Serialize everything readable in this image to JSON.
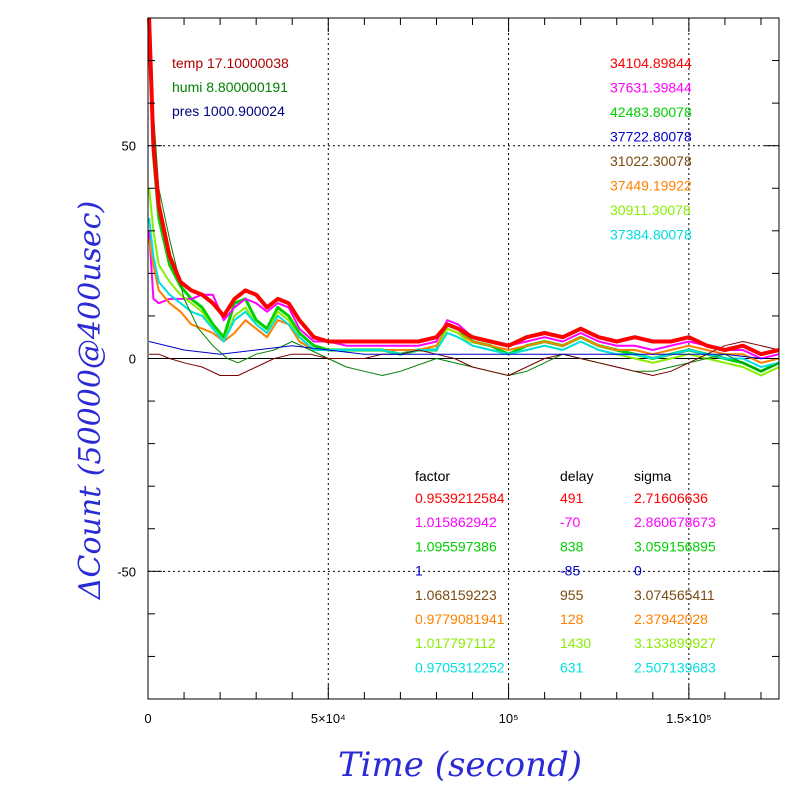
{
  "chart_data": {
    "type": "line",
    "xlabel": "Time (second)",
    "ylabel": "ΔCount (50000@400usec)",
    "xlim": [
      0,
      175000
    ],
    "ylim": [
      -80,
      80
    ],
    "x_ticks": [
      {
        "value": 0,
        "label": "0"
      },
      {
        "value": 50000,
        "label": "5×10⁴"
      },
      {
        "value": 100000,
        "label": "10⁵"
      },
      {
        "value": 150000,
        "label": "1.5×10⁵"
      }
    ],
    "y_ticks": [
      {
        "value": -50,
        "label": "-50"
      },
      {
        "value": 0,
        "label": "0"
      },
      {
        "value": 50,
        "label": "50"
      }
    ],
    "grid": "dotted",
    "env": [
      {
        "text": "temp 17.10000038",
        "color": "#b00000"
      },
      {
        "text": "humi 8.800000191",
        "color": "#008000"
      },
      {
        "text": "pres 1000.900024",
        "color": "#000080"
      }
    ],
    "series_values": [
      {
        "text": "34104.89844",
        "color": "#ff0000"
      },
      {
        "text": "37631.39844",
        "color": "#ff00ff"
      },
      {
        "text": "42483.80078",
        "color": "#00d000"
      },
      {
        "text": "37722.80078",
        "color": "#0000cc"
      },
      {
        "text": "31022.30078",
        "color": "#7a4a10"
      },
      {
        "text": "37449.19922",
        "color": "#ff8000"
      },
      {
        "text": "30911.30078",
        "color": "#88ee00"
      },
      {
        "text": "37384.80078",
        "color": "#00e0e0"
      }
    ],
    "table": {
      "headers": [
        "factor",
        "delay",
        "sigma"
      ],
      "rows": [
        {
          "factor": "0.9539212584",
          "delay": "491",
          "sigma": "2.71606636",
          "color": "#ff0000"
        },
        {
          "factor": "1.015862942",
          "delay": "-70",
          "sigma": "2.860678673",
          "color": "#ff00ff"
        },
        {
          "factor": "1.095597386",
          "delay": "838",
          "sigma": "3.059156895",
          "color": "#00d000"
        },
        {
          "factor": "1",
          "delay": "-85",
          "sigma": "0",
          "color": "#0000cc"
        },
        {
          "factor": "1.068159223",
          "delay": "955",
          "sigma": "3.074565411",
          "color": "#7a4a10"
        },
        {
          "factor": "0.9779081941",
          "delay": "128",
          "sigma": "2.37942028",
          "color": "#ff8000"
        },
        {
          "factor": "1.017797112",
          "delay": "1430",
          "sigma": "3.133899927",
          "color": "#88ee00"
        },
        {
          "factor": "0.9705312252",
          "delay": "631",
          "sigma": "2.507139683",
          "color": "#00e0e0"
        }
      ]
    },
    "series": [
      {
        "color": "#00d000",
        "width": 3,
        "x": [
          300,
          1500,
          3000,
          6000,
          9000,
          12000,
          15000,
          18000,
          21000,
          24000,
          27000,
          30000,
          33000,
          36000,
          39000,
          42000,
          46000,
          50000,
          55000,
          60000,
          65000,
          70000,
          75000,
          80000,
          83000,
          86000,
          90000,
          95000,
          100000,
          105000,
          110000,
          115000,
          120000,
          125000,
          130000,
          135000,
          140000,
          145000,
          150000,
          155000,
          160000,
          165000,
          170000,
          175000
        ],
        "y": [
          78,
          48,
          33,
          22,
          17,
          14,
          12,
          8,
          5,
          13,
          14,
          9,
          7,
          12,
          10,
          6,
          3,
          2,
          2,
          2,
          2,
          1,
          2,
          2,
          8,
          7,
          4,
          3,
          1,
          3,
          4,
          3,
          5,
          3,
          2,
          1,
          0,
          1,
          2,
          1,
          0,
          -1,
          -3,
          -1
        ]
      },
      {
        "color": "#ff00ff",
        "width": 2,
        "x": [
          300,
          1500,
          3000,
          6000,
          9000,
          12000,
          15000,
          18000,
          21000,
          24000,
          27000,
          30000,
          33000,
          36000,
          39000,
          42000,
          46000,
          50000,
          55000,
          60000,
          65000,
          70000,
          75000,
          80000,
          83000,
          86000,
          90000,
          95000,
          100000,
          105000,
          110000,
          115000,
          120000,
          125000,
          130000,
          135000,
          140000,
          145000,
          150000,
          155000,
          160000,
          165000,
          170000,
          175000
        ],
        "y": [
          30,
          14,
          13,
          14,
          14,
          14,
          15,
          15,
          9,
          12,
          14,
          13,
          11,
          13,
          12,
          7,
          4,
          4,
          3,
          3,
          3,
          3,
          3,
          4,
          9,
          8,
          5,
          4,
          3,
          4,
          5,
          4,
          6,
          4,
          3,
          3,
          2,
          3,
          4,
          3,
          2,
          2,
          0,
          1
        ]
      },
      {
        "color": "#ff8000",
        "width": 2,
        "x": [
          300,
          1500,
          3000,
          6000,
          9000,
          12000,
          15000,
          18000,
          21000,
          24000,
          27000,
          30000,
          33000,
          36000,
          39000,
          42000,
          46000,
          50000,
          55000,
          60000,
          65000,
          70000,
          75000,
          80000,
          83000,
          86000,
          90000,
          95000,
          100000,
          105000,
          110000,
          115000,
          120000,
          125000,
          130000,
          135000,
          140000,
          145000,
          150000,
          155000,
          160000,
          165000,
          170000,
          175000
        ],
        "y": [
          28,
          22,
          16,
          13,
          11,
          8,
          7,
          6,
          4,
          6,
          9,
          7,
          5,
          9,
          8,
          4,
          2,
          2,
          2,
          2,
          2,
          2,
          2,
          3,
          7,
          6,
          4,
          3,
          2,
          3,
          4,
          3,
          5,
          3,
          2,
          2,
          1,
          2,
          3,
          2,
          1,
          1,
          -1,
          0
        ]
      },
      {
        "color": "#88ee00",
        "width": 2,
        "x": [
          300,
          1500,
          3000,
          6000,
          9000,
          12000,
          15000,
          18000,
          21000,
          24000,
          27000,
          30000,
          33000,
          36000,
          39000,
          42000,
          46000,
          50000,
          55000,
          60000,
          65000,
          70000,
          75000,
          80000,
          83000,
          86000,
          90000,
          95000,
          100000,
          105000,
          110000,
          115000,
          120000,
          125000,
          130000,
          135000,
          140000,
          145000,
          150000,
          155000,
          160000,
          165000,
          170000,
          175000
        ],
        "y": [
          40,
          30,
          22,
          18,
          15,
          13,
          11,
          7,
          4,
          10,
          12,
          8,
          6,
          11,
          9,
          5,
          2,
          2,
          2,
          2,
          2,
          1,
          2,
          2,
          7,
          6,
          3,
          2,
          1,
          2,
          3,
          2,
          4,
          2,
          1,
          0,
          -1,
          0,
          1,
          0,
          -1,
          -2,
          -4,
          -2
        ]
      },
      {
        "color": "#00e0e0",
        "width": 2,
        "x": [
          300,
          1500,
          3000,
          6000,
          9000,
          12000,
          15000,
          18000,
          21000,
          24000,
          27000,
          30000,
          33000,
          36000,
          39000,
          42000,
          46000,
          50000,
          55000,
          60000,
          65000,
          70000,
          75000,
          80000,
          83000,
          86000,
          90000,
          95000,
          100000,
          105000,
          110000,
          115000,
          120000,
          125000,
          130000,
          135000,
          140000,
          145000,
          150000,
          155000,
          160000,
          165000,
          170000,
          175000
        ],
        "y": [
          33,
          24,
          18,
          15,
          13,
          11,
          10,
          7,
          4,
          9,
          11,
          8,
          6,
          10,
          8,
          5,
          2,
          2,
          2,
          2,
          2,
          1,
          2,
          2,
          6,
          5,
          3,
          2,
          1,
          2,
          3,
          2,
          4,
          2,
          1,
          1,
          0,
          1,
          2,
          1,
          0,
          0,
          -2,
          -1
        ]
      },
      {
        "color": "#008000",
        "width": 1,
        "x": [
          300,
          3000,
          6000,
          10000,
          14000,
          18000,
          22000,
          25000,
          30000,
          35000,
          40000,
          45000,
          50000,
          55000,
          60000,
          65000,
          70000,
          80000,
          90000,
          95000,
          100000,
          105000,
          110000,
          115000,
          120000,
          125000,
          130000,
          135000,
          140000,
          145000,
          150000,
          155000,
          160000,
          165000,
          170000,
          175000
        ],
        "y": [
          72,
          40,
          28,
          14,
          7,
          3,
          0,
          -1,
          1,
          2,
          4,
          2,
          0,
          -2,
          -3,
          -4,
          -3,
          0,
          -2,
          -3,
          -4,
          -3,
          -1,
          1,
          0,
          -1,
          -2,
          -3,
          -3,
          -2,
          -1,
          0,
          1,
          -1,
          -3,
          -1
        ]
      },
      {
        "color": "#7a0000",
        "width": 1,
        "x": [
          300,
          3000,
          6000,
          10000,
          15000,
          20000,
          25000,
          30000,
          35000,
          40000,
          45000,
          50000,
          55000,
          60000,
          65000,
          70000,
          75000,
          80000,
          85000,
          90000,
          95000,
          100000,
          105000,
          110000,
          115000,
          120000,
          125000,
          130000,
          135000,
          140000,
          145000,
          150000,
          155000,
          160000,
          165000,
          170000,
          175000
        ],
        "y": [
          1,
          1,
          0,
          -1,
          -2,
          -4,
          -4,
          -2,
          0,
          1,
          1,
          0,
          0,
          0,
          1,
          1,
          2,
          1,
          0,
          -2,
          -3,
          -4,
          -2,
          0,
          1,
          0,
          -1,
          -2,
          -3,
          -4,
          -3,
          -1,
          1,
          3,
          4,
          3,
          2
        ]
      },
      {
        "color": "#0000cc",
        "width": 1,
        "x": [
          300,
          10000,
          20000,
          30000,
          40000,
          50000,
          60000,
          70000,
          80000,
          90000,
          100000,
          110000,
          120000,
          130000,
          140000,
          150000,
          160000,
          170000,
          175000
        ],
        "y": [
          4,
          2,
          1,
          2,
          3,
          2,
          1,
          1,
          1,
          1,
          1,
          1,
          1,
          1,
          1,
          1,
          1,
          0,
          0
        ]
      },
      {
        "color": "#ff0000",
        "width": 4,
        "x": [
          300,
          1500,
          3000,
          6000,
          9000,
          12000,
          15000,
          18000,
          21000,
          24000,
          27000,
          30000,
          33000,
          36000,
          39000,
          42000,
          46000,
          50000,
          55000,
          60000,
          65000,
          70000,
          75000,
          80000,
          83000,
          86000,
          90000,
          95000,
          100000,
          105000,
          110000,
          115000,
          120000,
          125000,
          130000,
          135000,
          140000,
          145000,
          150000,
          155000,
          160000,
          165000,
          170000,
          175000
        ],
        "y": [
          80,
          50,
          36,
          24,
          18,
          16,
          15,
          13,
          10,
          14,
          16,
          15,
          12,
          14,
          13,
          9,
          5,
          4,
          4,
          4,
          4,
          4,
          4,
          5,
          8,
          7,
          5,
          4,
          3,
          5,
          6,
          5,
          7,
          5,
          4,
          5,
          4,
          4,
          5,
          3,
          2,
          3,
          1,
          2
        ]
      }
    ]
  }
}
